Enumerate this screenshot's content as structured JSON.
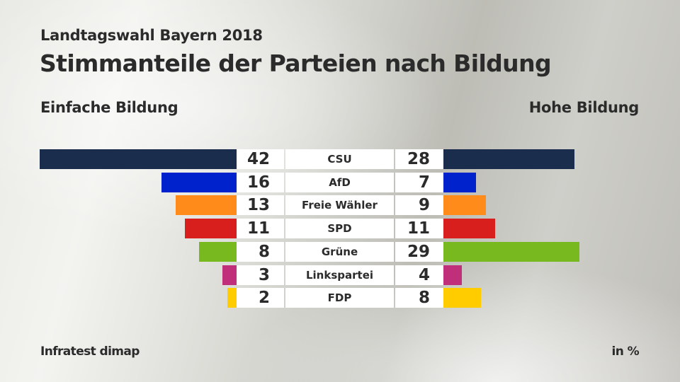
{
  "header": {
    "subtitle": "Landtagswahl Bayern 2018",
    "title": "Stimmanteile der Parteien nach Bildung",
    "left_heading": "Einfache Bildung",
    "right_heading": "Hohe Bildung"
  },
  "footer": {
    "source": "Infratest dimap",
    "unit": "in %"
  },
  "chart_data": {
    "type": "bar",
    "orientation": "horizontal-butterfly",
    "title": "Stimmanteile der Parteien nach Bildung",
    "subtitle": "Landtagswahl Bayern 2018",
    "unit": "%",
    "categories": [
      "CSU",
      "AfD",
      "Freie Wähler",
      "SPD",
      "Grüne",
      "Linkspartei",
      "FDP"
    ],
    "colors": [
      "#1b2d4d",
      "#0022cc",
      "#ff8c1a",
      "#d91e1e",
      "#77b91e",
      "#c0307a",
      "#ffcc00"
    ],
    "series": [
      {
        "name": "Einfache Bildung",
        "side": "left",
        "values": [
          42,
          16,
          13,
          11,
          8,
          3,
          2
        ]
      },
      {
        "name": "Hohe Bildung",
        "side": "right",
        "values": [
          28,
          7,
          9,
          11,
          29,
          4,
          8
        ]
      }
    ],
    "xlim": [
      0,
      42
    ]
  }
}
